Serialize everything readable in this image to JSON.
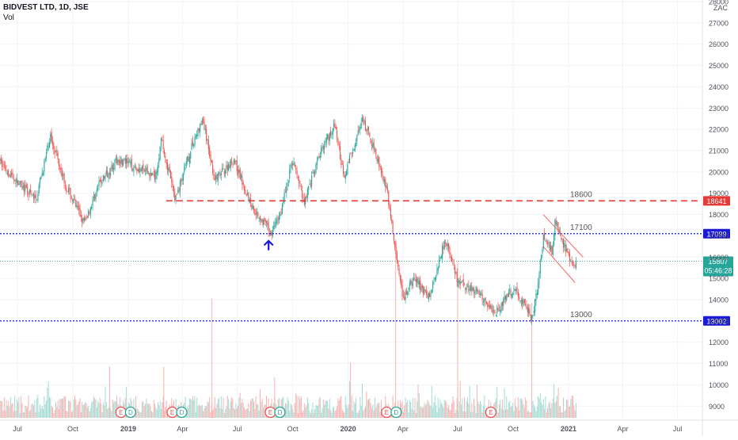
{
  "header": {
    "symbol": "BIDVEST LTD, 1D, JSE",
    "volume_label": "Vol",
    "currency": "ZAC"
  },
  "price_scale": {
    "ticks": [
      9000,
      10000,
      11000,
      12000,
      13000,
      14000,
      15000,
      16000,
      17000,
      18000,
      19000,
      20000,
      21000,
      22000,
      23000,
      24000,
      25000,
      26000,
      27000,
      28000
    ]
  },
  "time_scale": {
    "labels": [
      "Jul",
      "Oct",
      "2019",
      "Apr",
      "Jul",
      "Oct",
      "2020",
      "Apr",
      "Jul",
      "Oct",
      "2021",
      "Apr",
      "Jul"
    ]
  },
  "price_labels": {
    "last_price": "15807",
    "countdown": "05:46:28",
    "level_resistance": "18641",
    "level_upper": "17099",
    "level_lower": "13002"
  },
  "annotations": {
    "level_18600": "18600",
    "level_17100": "17100",
    "level_13000": "13000"
  },
  "colors": {
    "up": "#26a69a",
    "down": "#ef5350",
    "resistance": "#e53935",
    "support": "#1a1ad6",
    "arrow": "#1a1ad6",
    "channel": "#f06a6a",
    "last_price_label": "#26a69a",
    "volume_up": "#a3dcd4",
    "volume_down": "#f6b3b1",
    "earnings_badge": "#ef5350",
    "dividend_badge": "#26a69a"
  },
  "events": [
    {
      "type": "E",
      "x_label": "Dec 2018"
    },
    {
      "type": "D",
      "x_label": "Dec 2018"
    },
    {
      "type": "E",
      "x_label": "Mar 2019"
    },
    {
      "type": "D",
      "x_label": "Mar 2019"
    },
    {
      "type": "E",
      "x_label": "Aug 2019"
    },
    {
      "type": "D",
      "x_label": "Aug 2019"
    },
    {
      "type": "E",
      "x_label": "Feb 2020"
    },
    {
      "type": "D",
      "x_label": "Feb 2020"
    },
    {
      "type": "E",
      "x_label": "Aug 2020"
    }
  ],
  "chart_data": {
    "type": "candlestick",
    "title": "BIDVEST LTD, 1D, JSE",
    "ylabel": "ZAC",
    "ylim": [
      8600,
      28000
    ],
    "x_range": [
      "2018-06",
      "2021-08"
    ],
    "grid": true,
    "horizontal_levels": [
      {
        "value": 18641,
        "style": "dashed",
        "label": "18600"
      },
      {
        "value": 17099,
        "style": "dotted",
        "label": "17100"
      },
      {
        "value": 13002,
        "style": "dotted",
        "label": "13000"
      }
    ],
    "last_price": 15807,
    "series": [
      {
        "name": "price",
        "points": [
          [
            "2018-06-01",
            20500
          ],
          [
            "2018-07-01",
            19500
          ],
          [
            "2018-08-01",
            18700
          ],
          [
            "2018-08-25",
            21700
          ],
          [
            "2018-09-20",
            19300
          ],
          [
            "2018-10-20",
            17600
          ],
          [
            "2018-11-15",
            19500
          ],
          [
            "2018-12-15",
            20600
          ],
          [
            "2019-01-15",
            20200
          ],
          [
            "2019-02-15",
            19800
          ],
          [
            "2019-02-25",
            21500
          ],
          [
            "2019-03-20",
            18700
          ],
          [
            "2019-04-20",
            21500
          ],
          [
            "2019-05-05",
            22400
          ],
          [
            "2019-05-25",
            19600
          ],
          [
            "2019-06-25",
            20600
          ],
          [
            "2019-07-25",
            18400
          ],
          [
            "2019-08-20",
            17400
          ],
          [
            "2019-08-25",
            17100
          ],
          [
            "2019-09-10",
            18000
          ],
          [
            "2019-10-01",
            20600
          ],
          [
            "2019-10-20",
            18600
          ],
          [
            "2019-11-20",
            21200
          ],
          [
            "2019-12-10",
            22200
          ],
          [
            "2019-12-25",
            19800
          ],
          [
            "2020-01-10",
            21200
          ],
          [
            "2020-01-25",
            22400
          ],
          [
            "2020-02-15",
            21000
          ],
          [
            "2020-03-05",
            19200
          ],
          [
            "2020-03-25",
            15200
          ],
          [
            "2020-04-01",
            14000
          ],
          [
            "2020-04-20",
            15000
          ],
          [
            "2020-05-15",
            14100
          ],
          [
            "2020-06-10",
            16900
          ],
          [
            "2020-07-01",
            14800
          ],
          [
            "2020-08-01",
            14400
          ],
          [
            "2020-09-01",
            13400
          ],
          [
            "2020-10-01",
            14500
          ],
          [
            "2020-10-20",
            13800
          ],
          [
            "2020-11-01",
            13100
          ],
          [
            "2020-11-10",
            14400
          ],
          [
            "2020-11-20",
            16900
          ],
          [
            "2020-12-05",
            16300
          ],
          [
            "2020-12-10",
            17700
          ],
          [
            "2020-12-25",
            16500
          ],
          [
            "2021-01-05",
            15600
          ],
          [
            "2021-01-15",
            15807
          ]
        ]
      },
      {
        "name": "volume",
        "unit": "shares",
        "points": [
          [
            "2018-12-01",
            11000
          ],
          [
            "2019-03-01",
            11000
          ],
          [
            "2019-05-20",
            14200
          ],
          [
            "2019-09-01",
            10500
          ],
          [
            "2020-01-05",
            11200
          ],
          [
            "2020-03-20",
            17000
          ],
          [
            "2020-07-01",
            16000
          ],
          [
            "2020-11-01",
            14000
          ],
          [
            "2020-12-15",
            10000
          ]
        ]
      }
    ]
  }
}
